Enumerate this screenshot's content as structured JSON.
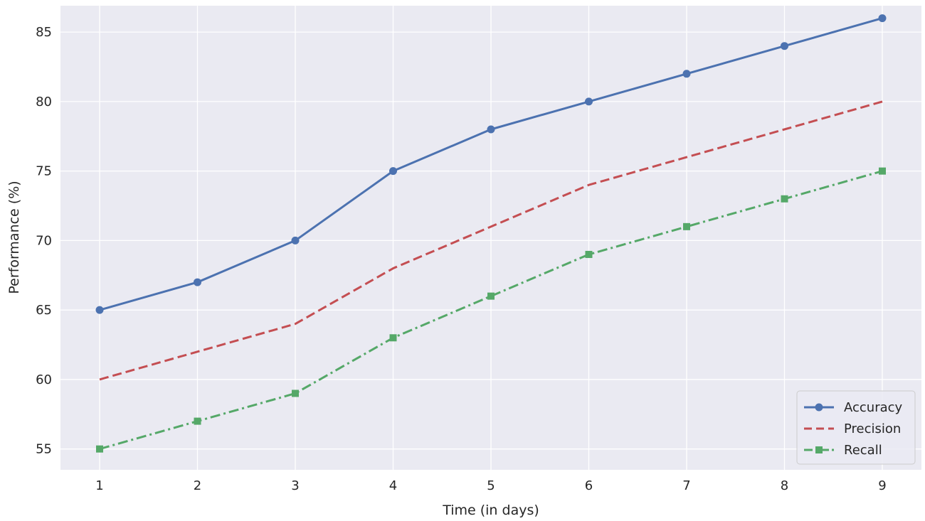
{
  "chart_data": {
    "type": "line",
    "title": "",
    "xlabel": "Time (in days)",
    "ylabel": "Performance (%)",
    "x": [
      1,
      2,
      3,
      4,
      5,
      6,
      7,
      8,
      9
    ],
    "x_ticks": [
      "1",
      "2",
      "3",
      "4",
      "5",
      "6",
      "7",
      "8",
      "9"
    ],
    "y_ticks": [
      "55",
      "60",
      "65",
      "70",
      "75",
      "80",
      "85"
    ],
    "xlim": [
      0.6,
      9.4
    ],
    "ylim": [
      53.5,
      86.9
    ],
    "grid": true,
    "legend_position": "bottom-right",
    "series": [
      {
        "name": "Accuracy",
        "values": [
          65,
          67,
          70,
          75,
          78,
          80,
          82,
          84,
          86
        ],
        "color": "#4c72b0",
        "style": "solid",
        "marker": "circle"
      },
      {
        "name": "Precision",
        "values": [
          60,
          62,
          64,
          68,
          71,
          74,
          76,
          78,
          80
        ],
        "color": "#c44e52",
        "style": "dashed",
        "marker": "none"
      },
      {
        "name": "Recall",
        "values": [
          55,
          57,
          59,
          63,
          66,
          69,
          71,
          73,
          75
        ],
        "color": "#55a868",
        "style": "dashdot",
        "marker": "square"
      }
    ],
    "colors": {
      "plot_background": "#eaeaf2",
      "grid": "#ffffff",
      "text": "#262626"
    }
  }
}
